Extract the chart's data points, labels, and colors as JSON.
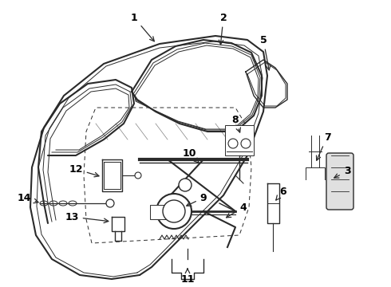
{
  "bg_color": "#ffffff",
  "line_color": "#2a2a2a",
  "label_color": "#000000",
  "lw_main": 1.5,
  "lw_med": 1.0,
  "lw_thin": 0.7,
  "label_fontsize": 9,
  "label_fontweight": "bold"
}
